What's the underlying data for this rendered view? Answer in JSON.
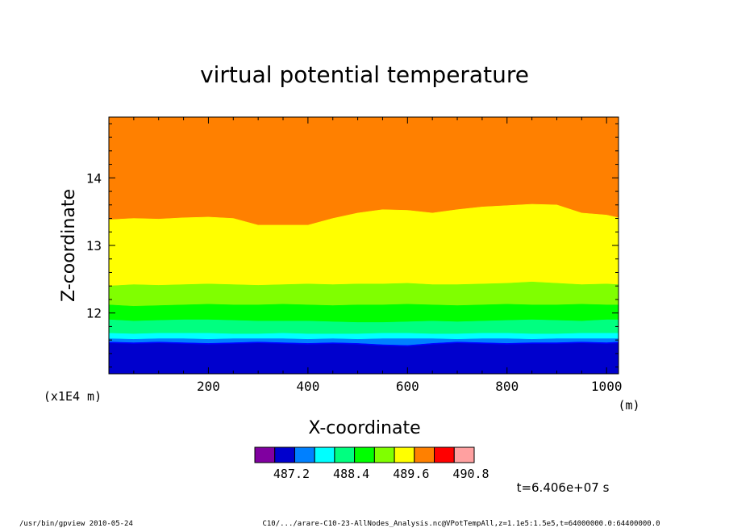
{
  "chart_data": {
    "type": "heatmap",
    "title": "virtual potential temperature",
    "xlabel": "X-coordinate",
    "ylabel": "Z-coordinate",
    "x_unit": "(m)",
    "y_scale_note": "(x1E4 m)",
    "xlim": [
      0,
      1024
    ],
    "ylim": [
      11.1,
      14.9
    ],
    "x_ticks": [
      "200",
      "400",
      "600",
      "800",
      "1000"
    ],
    "x_tick_values": [
      200,
      400,
      600,
      800,
      1000
    ],
    "y_ticks": [
      "14",
      "13",
      "12"
    ],
    "y_tick_values": [
      14,
      13,
      12
    ],
    "band_profile_x": [
      0,
      50,
      100,
      150,
      200,
      250,
      300,
      350,
      400,
      450,
      500,
      550,
      600,
      650,
      700,
      750,
      800,
      850,
      900,
      950,
      1000,
      1024
    ],
    "top_boundary_z": [
      13.38,
      13.4,
      13.39,
      13.41,
      13.42,
      13.4,
      13.3,
      13.3,
      13.3,
      13.4,
      13.48,
      13.53,
      13.52,
      13.48,
      13.53,
      13.57,
      13.59,
      13.61,
      13.6,
      13.48,
      13.45,
      13.41
    ],
    "bands": [
      {
        "z": [
          12.4,
          12.42,
          12.41,
          12.42,
          12.43,
          12.42,
          12.41,
          12.42,
          12.43,
          12.42,
          12.43,
          12.43,
          12.44,
          12.42,
          12.42,
          12.43,
          12.44,
          12.46,
          12.44,
          12.42,
          12.43,
          12.42
        ],
        "color": "#80ff00"
      },
      {
        "z": [
          12.12,
          12.1,
          12.11,
          12.12,
          12.13,
          12.12,
          12.12,
          12.13,
          12.12,
          12.11,
          12.12,
          12.12,
          12.13,
          12.12,
          12.11,
          12.12,
          12.13,
          12.12,
          12.12,
          12.13,
          12.12,
          12.12
        ],
        "color": "#00ff00"
      },
      {
        "z": [
          11.9,
          11.88,
          11.89,
          11.9,
          11.9,
          11.89,
          11.88,
          11.88,
          11.88,
          11.87,
          11.86,
          11.86,
          11.87,
          11.88,
          11.87,
          11.88,
          11.89,
          11.9,
          11.89,
          11.88,
          11.9,
          11.9
        ],
        "color": "#00ff80"
      },
      {
        "z": [
          11.7,
          11.69,
          11.7,
          11.7,
          11.7,
          11.69,
          11.69,
          11.7,
          11.69,
          11.69,
          11.69,
          11.7,
          11.7,
          11.69,
          11.69,
          11.7,
          11.7,
          11.69,
          11.69,
          11.7,
          11.7,
          11.7
        ],
        "color": "#00ffff"
      },
      {
        "z": [
          11.62,
          11.61,
          11.62,
          11.62,
          11.61,
          11.62,
          11.62,
          11.62,
          11.61,
          11.62,
          11.61,
          11.62,
          11.62,
          11.62,
          11.61,
          11.62,
          11.62,
          11.61,
          11.62,
          11.62,
          11.62,
          11.62
        ],
        "color": "#0080ff"
      },
      {
        "z": [
          11.57,
          11.56,
          11.57,
          11.56,
          11.55,
          11.56,
          11.57,
          11.56,
          11.55,
          11.56,
          11.55,
          11.53,
          11.52,
          11.55,
          11.57,
          11.56,
          11.55,
          11.56,
          11.56,
          11.57,
          11.56,
          11.57
        ],
        "color": "#0000ff"
      }
    ],
    "top_color": "#ff8000",
    "upper_color": "#ffff00",
    "bottom_color": "#0000cd",
    "colorbar": {
      "colors": [
        "#8000a0",
        "#0000cd",
        "#0080ff",
        "#00ffff",
        "#00ff80",
        "#00ff00",
        "#80ff00",
        "#ffff00",
        "#ff8000",
        "#ff0000",
        "#ffa0a0"
      ],
      "labels": [
        "487.2",
        "488.4",
        "489.6",
        "490.8"
      ],
      "label_after_index": [
        1,
        4,
        7,
        10
      ]
    },
    "time_label": "t=6.406e+07 s"
  },
  "footer": {
    "left": "/usr/bin/gpview  2010-05-24",
    "right": "C10/.../arare-C10-23-AllNodes_Analysis.nc@VPotTempAll,z=1.1e5:1.5e5,t=64000000.0:64400000.0"
  }
}
